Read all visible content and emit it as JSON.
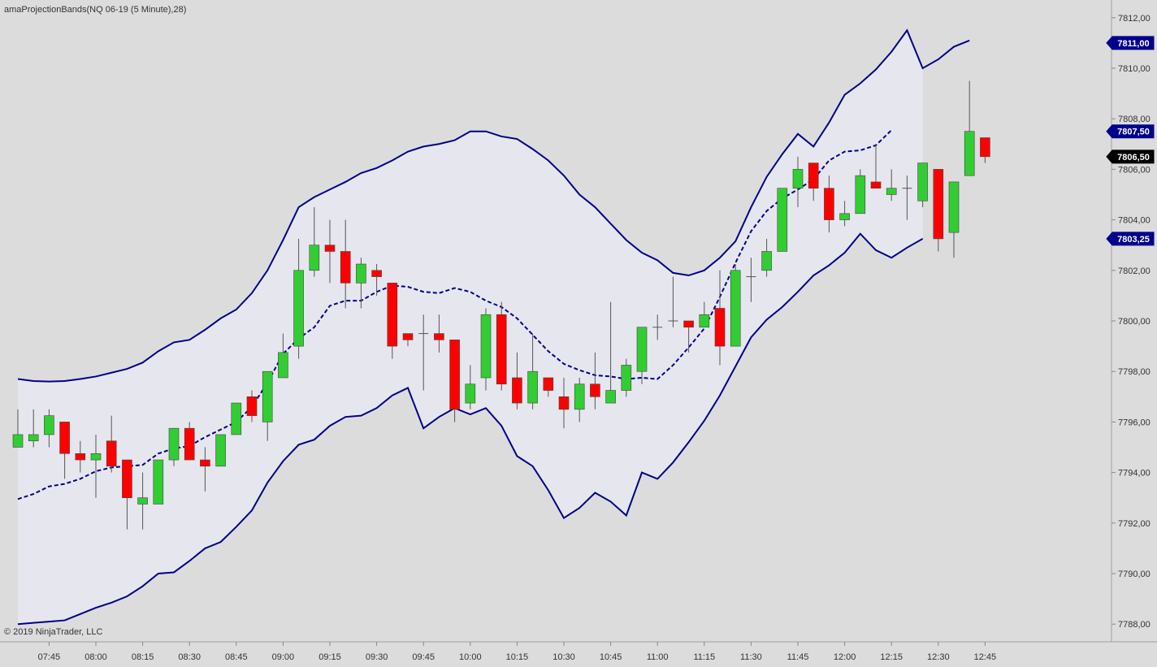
{
  "title": "amaProjectionBands(NQ 06-19 (5 Minute),28)",
  "copyright": "© 2019 NinjaTrader, LLC",
  "colors": {
    "background": "#dcdcdc",
    "band_fill": "#e6e6ee",
    "band_line": "#00008b",
    "up_candle": "#32cd32",
    "down_candle": "#ff0000",
    "wick": "#555555",
    "flag_band": "#00008b",
    "flag_price": "#000000"
  },
  "chart_data": {
    "type": "candlestick",
    "ylim": [
      7787.3,
      7812.7
    ],
    "y_ticks": [
      "7788,00",
      "7790,00",
      "7792,00",
      "7794,00",
      "7796,00",
      "7798,00",
      "7800,00",
      "7802,00",
      "7804,00",
      "7806,00",
      "7808,00",
      "7810,00",
      "7812,00"
    ],
    "x_ticks": [
      {
        "bar": 2,
        "label": "07:45"
      },
      {
        "bar": 5,
        "label": "08:00"
      },
      {
        "bar": 8,
        "label": "08:15"
      },
      {
        "bar": 11,
        "label": "08:30"
      },
      {
        "bar": 14,
        "label": "08:45"
      },
      {
        "bar": 17,
        "label": "09:00"
      },
      {
        "bar": 20,
        "label": "09:15"
      },
      {
        "bar": 23,
        "label": "09:30"
      },
      {
        "bar": 26,
        "label": "09:45"
      },
      {
        "bar": 29,
        "label": "10:00"
      },
      {
        "bar": 32,
        "label": "10:15"
      },
      {
        "bar": 35,
        "label": "10:30"
      },
      {
        "bar": 38,
        "label": "10:45"
      },
      {
        "bar": 41,
        "label": "11:00"
      },
      {
        "bar": 44,
        "label": "11:15"
      },
      {
        "bar": 47,
        "label": "11:30"
      },
      {
        "bar": 50,
        "label": "11:45"
      },
      {
        "bar": 53,
        "label": "12:00"
      },
      {
        "bar": 56,
        "label": "12:15"
      },
      {
        "bar": 59,
        "label": "12:30"
      },
      {
        "bar": 62,
        "label": "12:45"
      }
    ],
    "candles": [
      {
        "o": 7795.0,
        "h": 7796.5,
        "l": 7795.0,
        "c": 7795.5
      },
      {
        "o": 7795.25,
        "h": 7796.5,
        "l": 7795.0,
        "c": 7795.5
      },
      {
        "o": 7795.5,
        "h": 7796.5,
        "l": 7795.0,
        "c": 7796.25
      },
      {
        "o": 7796.0,
        "h": 7796.0,
        "l": 7793.75,
        "c": 7794.75
      },
      {
        "o": 7794.75,
        "h": 7795.25,
        "l": 7794.0,
        "c": 7794.5
      },
      {
        "o": 7794.5,
        "h": 7795.5,
        "l": 7793.0,
        "c": 7794.75
      },
      {
        "o": 7795.25,
        "h": 7796.25,
        "l": 7794.0,
        "c": 7794.25
      },
      {
        "o": 7794.5,
        "h": 7794.5,
        "l": 7791.75,
        "c": 7793.0
      },
      {
        "o": 7792.75,
        "h": 7794.0,
        "l": 7791.75,
        "c": 7793.0
      },
      {
        "o": 7792.75,
        "h": 7794.5,
        "l": 7792.75,
        "c": 7794.5
      },
      {
        "o": 7794.5,
        "h": 7795.75,
        "l": 7794.25,
        "c": 7795.75
      },
      {
        "o": 7795.75,
        "h": 7796.0,
        "l": 7794.5,
        "c": 7794.5
      },
      {
        "o": 7794.5,
        "h": 7795.0,
        "l": 7793.25,
        "c": 7794.25
      },
      {
        "o": 7794.25,
        "h": 7795.5,
        "l": 7794.25,
        "c": 7795.5
      },
      {
        "o": 7795.5,
        "h": 7796.75,
        "l": 7795.5,
        "c": 7796.75
      },
      {
        "o": 7797.0,
        "h": 7797.25,
        "l": 7796.0,
        "c": 7796.25
      },
      {
        "o": 7796.0,
        "h": 7798.0,
        "l": 7795.25,
        "c": 7798.0
      },
      {
        "o": 7797.75,
        "h": 7799.5,
        "l": 7797.75,
        "c": 7798.75
      },
      {
        "o": 7799.0,
        "h": 7803.25,
        "l": 7798.5,
        "c": 7802.0
      },
      {
        "o": 7802.0,
        "h": 7804.5,
        "l": 7801.75,
        "c": 7803.0
      },
      {
        "o": 7803.0,
        "h": 7804.0,
        "l": 7801.5,
        "c": 7802.75
      },
      {
        "o": 7802.75,
        "h": 7804.0,
        "l": 7800.5,
        "c": 7801.5
      },
      {
        "o": 7801.5,
        "h": 7802.5,
        "l": 7800.5,
        "c": 7802.25
      },
      {
        "o": 7802.0,
        "h": 7802.25,
        "l": 7801.0,
        "c": 7801.75
      },
      {
        "o": 7801.5,
        "h": 7801.5,
        "l": 7798.5,
        "c": 7799.0
      },
      {
        "o": 7799.5,
        "h": 7799.5,
        "l": 7799.0,
        "c": 7799.25
      },
      {
        "o": 7799.5,
        "h": 7800.25,
        "l": 7797.25,
        "c": 7799.5
      },
      {
        "o": 7799.5,
        "h": 7800.25,
        "l": 7798.75,
        "c": 7799.25
      },
      {
        "o": 7799.25,
        "h": 7799.25,
        "l": 7796.0,
        "c": 7796.5
      },
      {
        "o": 7796.75,
        "h": 7798.25,
        "l": 7796.5,
        "c": 7797.5
      },
      {
        "o": 7797.75,
        "h": 7800.5,
        "l": 7797.25,
        "c": 7800.25
      },
      {
        "o": 7800.25,
        "h": 7800.75,
        "l": 7797.25,
        "c": 7797.5
      },
      {
        "o": 7797.75,
        "h": 7798.75,
        "l": 7796.5,
        "c": 7796.75
      },
      {
        "o": 7796.75,
        "h": 7799.5,
        "l": 7796.5,
        "c": 7798.0
      },
      {
        "o": 7797.75,
        "h": 7797.75,
        "l": 7797.0,
        "c": 7797.25
      },
      {
        "o": 7797.0,
        "h": 7797.75,
        "l": 7795.75,
        "c": 7796.5
      },
      {
        "o": 7796.5,
        "h": 7797.75,
        "l": 7796.0,
        "c": 7797.5
      },
      {
        "o": 7797.5,
        "h": 7798.75,
        "l": 7796.5,
        "c": 7797.0
      },
      {
        "o": 7796.75,
        "h": 7800.75,
        "l": 7796.75,
        "c": 7797.25
      },
      {
        "o": 7797.25,
        "h": 7798.5,
        "l": 7797.0,
        "c": 7798.25
      },
      {
        "o": 7798.0,
        "h": 7799.75,
        "l": 7797.5,
        "c": 7799.75
      },
      {
        "o": 7799.75,
        "h": 7800.25,
        "l": 7799.25,
        "c": 7799.75
      },
      {
        "o": 7800.0,
        "h": 7801.75,
        "l": 7799.75,
        "c": 7800.0
      },
      {
        "o": 7800.0,
        "h": 7800.0,
        "l": 7798.75,
        "c": 7799.75
      },
      {
        "o": 7799.75,
        "h": 7800.75,
        "l": 7799.75,
        "c": 7800.25
      },
      {
        "o": 7800.5,
        "h": 7802.0,
        "l": 7798.25,
        "c": 7799.0
      },
      {
        "o": 7799.0,
        "h": 7802.25,
        "l": 7799.0,
        "c": 7802.0
      },
      {
        "o": 7801.75,
        "h": 7802.5,
        "l": 7800.75,
        "c": 7801.75
      },
      {
        "o": 7802.0,
        "h": 7803.25,
        "l": 7801.75,
        "c": 7802.75
      },
      {
        "o": 7802.75,
        "h": 7805.25,
        "l": 7802.75,
        "c": 7805.25
      },
      {
        "o": 7805.25,
        "h": 7806.5,
        "l": 7804.5,
        "c": 7806.0
      },
      {
        "o": 7806.25,
        "h": 7806.25,
        "l": 7804.75,
        "c": 7805.25
      },
      {
        "o": 7805.25,
        "h": 7805.75,
        "l": 7803.5,
        "c": 7804.0
      },
      {
        "o": 7804.0,
        "h": 7804.75,
        "l": 7803.75,
        "c": 7804.25
      },
      {
        "o": 7804.25,
        "h": 7806.0,
        "l": 7804.25,
        "c": 7805.75
      },
      {
        "o": 7805.5,
        "h": 7807.0,
        "l": 7805.25,
        "c": 7805.25
      },
      {
        "o": 7805.0,
        "h": 7806.0,
        "l": 7804.75,
        "c": 7805.25
      },
      {
        "o": 7805.25,
        "h": 7805.75,
        "l": 7804.0,
        "c": 7805.25
      },
      {
        "o": 7804.75,
        "h": 7806.25,
        "l": 7804.5,
        "c": 7806.25
      },
      {
        "o": 7806.0,
        "h": 7806.0,
        "l": 7802.75,
        "c": 7803.25
      },
      {
        "o": 7803.5,
        "h": 7805.5,
        "l": 7802.5,
        "c": 7805.5
      },
      {
        "o": 7805.75,
        "h": 7809.5,
        "l": 7805.75,
        "c": 7807.5
      },
      {
        "o": 7807.25,
        "h": 7807.25,
        "l": 7806.25,
        "c": 7806.5
      }
    ],
    "series": [
      {
        "values": [
          7797.67,
          7797.62,
          7797.59,
          7797.59,
          7797.62,
          7797.7,
          7797.83,
          7797.95,
          7798.1,
          7798.33,
          7798.74,
          7799.06,
          7799.12,
          7799.52,
          7800.02,
          7800.41,
          7801.11,
          7801.99,
          7803.24,
          7804.54,
          7804.84,
          7805.09,
          7805.38,
          7805.7,
          7805.9,
          7806.2,
          7806.57,
          7806.79,
          7806.9,
          7806.99,
          7807.15,
          7807.51,
          7807.51,
          7807.33,
          7807.23,
          7806.88,
          7806.44,
          7806.0,
          7805.47,
          7804.98,
          7804.54,
          7804.02,
          7803.53,
          7803.1,
          7802.81,
          7802.57,
          7802.22,
          7802.08,
          7802.25,
          7802.64,
          7803.28,
          7804.4,
          7805.43,
          7806.08,
          7806.77,
          7807.42,
          7807.0,
          7807.85,
          7808.97,
          7809.42,
          7809.98,
          7810.66,
          7811.53,
          7810.0,
          7810.35,
          7810.85,
          7811.1
        ]
      },
      {
        "values": [
          7792.96,
          7792.9,
          7792.8,
          7792.68,
          7792.55,
          7792.47,
          7792.34,
          7792.1,
          7791.86,
          7791.66,
          7791.35,
          7791.0,
          7790.78,
          7790.48,
          7790.15,
          7789.91,
          7789.6,
          7789.15,
          7788.83,
          7788.53,
          7788.37,
          7788.19,
          7788.02,
          7787.89,
          7787.77,
          7787.69,
          7787.58,
          7787.45,
          7787.38,
          7787.33,
          7787.29,
          7787.22,
          7787.2,
          7787.17,
          7787.14,
          7787.09,
          7787.06,
          7787.04,
          7787.03,
          7787.02,
          7787.03,
          7787.05,
          7787.06,
          7787.1,
          7787.14,
          7787.19,
          7787.23,
          7787.27,
          7787.32,
          7787.39,
          7787.45,
          7787.52,
          7787.6,
          7787.7,
          7787.8,
          7787.92,
          7788.03,
          7788.15,
          7788.28,
          7788.43,
          7788.57,
          7788.71,
          7788.87,
          7789.0,
          7789.2,
          7789.42,
          7789.6
        ]
      },
      {
        "values": [
          7792.96
        ]
      },
      {
        "values": [
          7792.96
        ]
      }
    ],
    "upper_band": [
      7797.7,
      7797.62,
      7797.6,
      7797.62,
      7797.7,
      7797.8,
      7797.95,
      7798.1,
      7798.35,
      7798.8,
      7799.15,
      7799.25,
      7799.65,
      7800.1,
      7800.45,
      7801.1,
      7802.0,
      7803.2,
      7804.5,
      7804.9,
      7805.2,
      7805.5,
      7805.85,
      7806.05,
      7806.35,
      7806.7,
      7806.9,
      7807.0,
      7807.15,
      7807.5,
      7807.5,
      7807.3,
      7807.2,
      7806.8,
      7806.35,
      7805.75,
      7805.0,
      7804.5,
      7803.85,
      7803.2,
      7802.7,
      7802.4,
      7801.9,
      7801.8,
      7802.0,
      7802.5,
      7803.15,
      7804.5,
      7805.7,
      7806.6,
      7807.4,
      7806.9,
      7807.85,
      7808.95,
      7809.4,
      7809.95,
      7810.65,
      7811.5,
      7810.0,
      7810.35,
      7810.85,
      7811.1
    ],
    "lower_band": [
      7788.0,
      7788.05,
      7788.1,
      7788.15,
      7788.4,
      7788.65,
      7788.85,
      7789.1,
      7789.5,
      7790.0,
      7790.05,
      7790.5,
      7791.0,
      7791.25,
      7791.85,
      7792.5,
      7793.6,
      7794.45,
      7795.1,
      7795.3,
      7795.85,
      7796.2,
      7796.25,
      7796.55,
      7797.05,
      7797.35,
      7795.75,
      7796.2,
      7796.55,
      7796.3,
      7796.55,
      7795.85,
      7794.65,
      7794.25,
      7793.3,
      7792.2,
      7792.6,
      7793.2,
      7792.85,
      7792.3,
      7794.0,
      7793.75,
      7794.4,
      7795.2,
      7796.05,
      7797.05,
      7798.2,
      7799.35,
      7800.05,
      7800.55,
      7801.15,
      7801.8,
      7802.2,
      7802.7,
      7803.45,
      7802.8,
      7802.5,
      7802.9,
      7803.25
    ],
    "mid_band": [
      7792.95,
      7793.15,
      7793.45,
      7793.55,
      7793.75,
      7794.05,
      7794.2,
      7794.25,
      7794.3,
      7794.75,
      7794.95,
      7795.05,
      7795.4,
      7795.7,
      7796.0,
      7796.6,
      7797.55,
      7798.7,
      7799.3,
      7799.75,
      7800.6,
      7800.8,
      7800.8,
      7801.15,
      7801.4,
      7801.35,
      7801.15,
      7801.1,
      7801.3,
      7801.15,
      7800.8,
      7800.55,
      7800.1,
      7799.45,
      7798.8,
      7798.3,
      7798.05,
      7797.85,
      7797.8,
      7797.7,
      7797.75,
      7797.7,
      7798.25,
      7798.95,
      7799.7,
      7800.95,
      7802.3,
      7803.55,
      7804.35,
      7804.85,
      7805.2,
      7805.6,
      7806.35,
      7806.7,
      7806.75,
      7806.95,
      7807.55
    ],
    "flags": [
      {
        "label": "7811,00",
        "value": 7811.0,
        "kind": "band"
      },
      {
        "label": "7807,50",
        "value": 7807.5,
        "kind": "band"
      },
      {
        "label": "7806,50",
        "value": 7806.5,
        "kind": "price"
      },
      {
        "label": "7803,25",
        "value": 7803.25,
        "kind": "band"
      }
    ]
  }
}
